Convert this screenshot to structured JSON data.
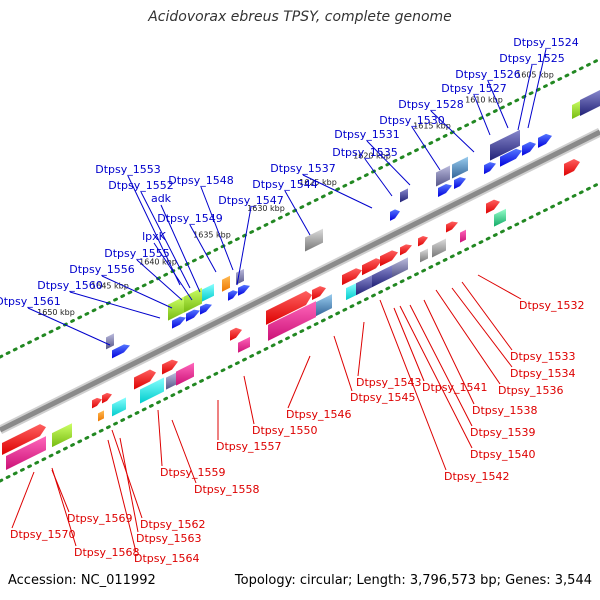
{
  "title": "Acidovorax ebreus TPSY, complete genome",
  "footer": {
    "accession": "Accession: NC_011992",
    "summary": "Topology: circular; Length: 3,796,573 bp; Genes: 3,544"
  },
  "colors": {
    "forward_label": "#0000cc",
    "reverse_label": "#dd0000",
    "backbone": "#8a8a8a",
    "tick_dots": "#228822"
  },
  "ticks": [
    "1605 kbp",
    "1610 kbp",
    "1615 kbp",
    "1620 kbp",
    "1625 kbp",
    "1630 kbp",
    "1635 kbp",
    "1640 kbp",
    "1645 kbp",
    "1650 kbp"
  ],
  "forward_genes": [
    "Dtpsy_1524",
    "Dtpsy_1525",
    "Dtpsy_1526",
    "Dtpsy_1527",
    "Dtpsy_1528",
    "Dtpsy_1530",
    "Dtpsy_1531",
    "Dtpsy_1535",
    "Dtpsy_1537",
    "Dtpsy_1544",
    "Dtpsy_1547",
    "Dtpsy_1548",
    "Dtpsy_1549",
    "Dtpsy_1553",
    "Dtpsy_1552",
    "adk",
    "lpxK",
    "Dtpsy_1555",
    "Dtpsy_1556",
    "Dtpsy_1560",
    "Dtpsy_1561"
  ],
  "reverse_genes": [
    "Dtpsy_1532",
    "Dtpsy_1533",
    "Dtpsy_1534",
    "Dtpsy_1536",
    "Dtpsy_1538",
    "Dtpsy_1539",
    "Dtpsy_1540",
    "Dtpsy_1541",
    "Dtpsy_1542",
    "Dtpsy_1543",
    "Dtpsy_1545",
    "Dtpsy_1546",
    "Dtpsy_1550",
    "Dtpsy_1557",
    "Dtpsy_1558",
    "Dtpsy_1559",
    "Dtpsy_1562",
    "Dtpsy_1563",
    "Dtpsy_1564",
    "Dtpsy_1568",
    "Dtpsy_1569",
    "Dtpsy_1570"
  ]
}
